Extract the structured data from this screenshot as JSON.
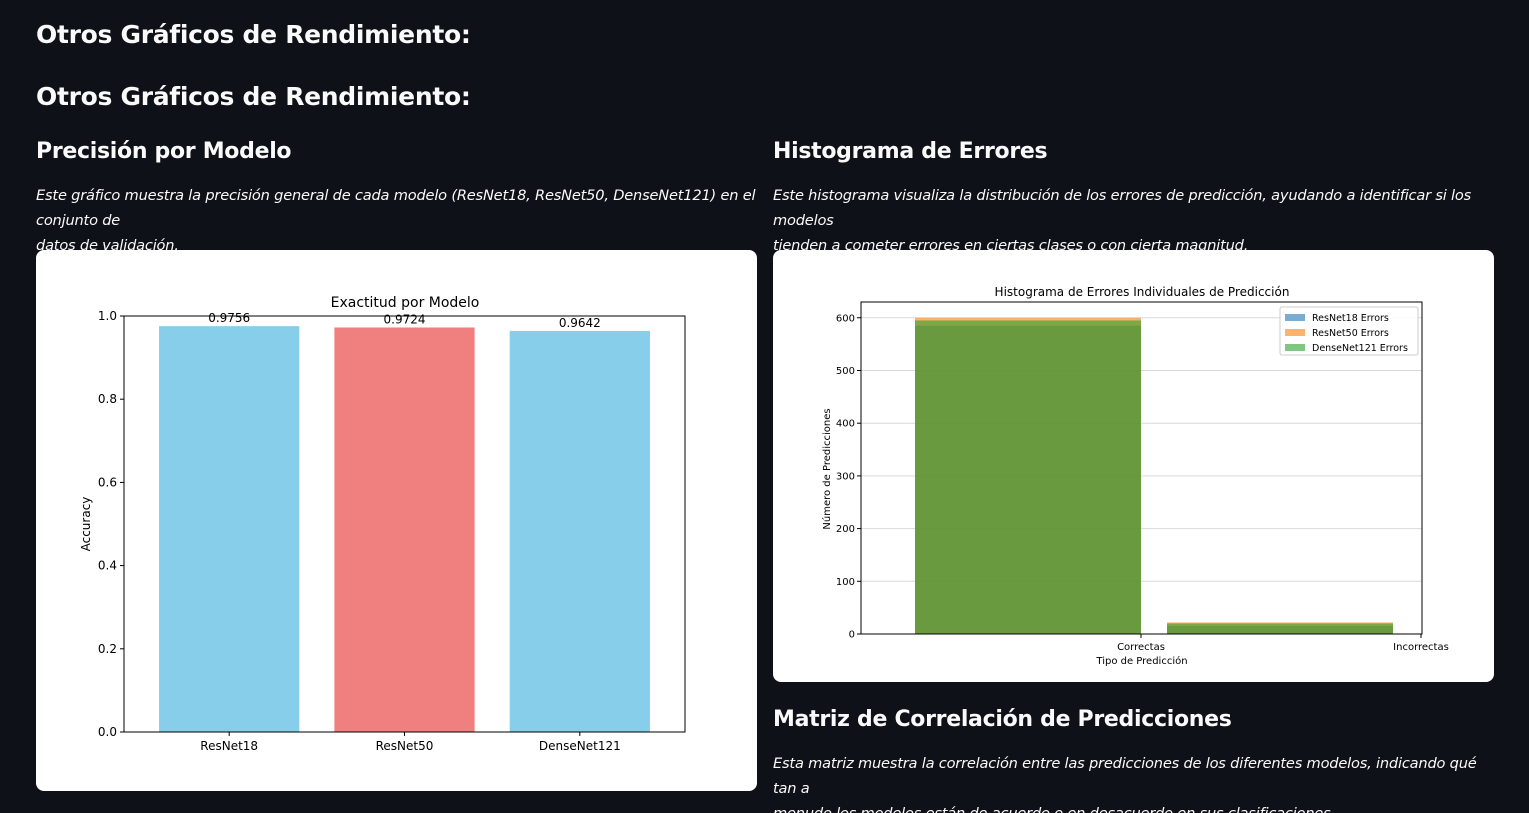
{
  "header": {
    "title_1": "Otros Gráficos de Rendimiento:",
    "title_2": "Otros Gráficos de Rendimiento:"
  },
  "left_section": {
    "heading": "Precisión por Modelo",
    "description_line1": "Este gráfico muestra la precisión general de cada modelo (ResNet18, ResNet50, DenseNet121) en el conjunto de",
    "description_line2": "datos de validación."
  },
  "right_section": {
    "heading": "Histograma de Errores",
    "description_line1": "Este histograma visualiza la distribución de los errores de predicción, ayudando a identificar si los modelos",
    "description_line2": "tienden a cometer errores en ciertas clases o con cierta magnitud."
  },
  "bottom_section": {
    "heading": "Matriz de Correlación de Predicciones",
    "description_line1": "Esta matriz muestra la correlación entre las predicciones de los diferentes modelos, indicando qué tan a",
    "description_line2": "menudo los modelos están de acuerdo o en desacuerdo en sus clasificaciones."
  },
  "chart_data": [
    {
      "type": "bar",
      "title": "Exactitud por Modelo",
      "xlabel": "",
      "ylabel": "Accuracy",
      "categories": [
        "ResNet18",
        "ResNet50",
        "DenseNet121"
      ],
      "values": [
        0.9756,
        0.9724,
        0.9642
      ],
      "value_labels": [
        "0.9756",
        "0.9724",
        "0.9642"
      ],
      "colors": [
        "#87ceeb",
        "#f08080",
        "#87ceeb"
      ],
      "ylim": [
        0,
        1.0
      ],
      "yticks": [
        "0.0",
        "0.2",
        "0.4",
        "0.6",
        "0.8",
        "1.0"
      ],
      "grid": false
    },
    {
      "type": "bar",
      "title": "Histograma de Errores Individuales de Predicción",
      "xlabel": "Tipo de Predicción",
      "ylabel": "Número de Predicciones",
      "categories": [
        "Correctas",
        "Incorrectas"
      ],
      "series": [
        {
          "name": "ResNet18 Errors",
          "color": "#1f77b4",
          "values": [
            585,
            15
          ]
        },
        {
          "name": "ResNet50 Errors",
          "color": "#ff7f0e",
          "values": [
            600,
            22
          ]
        },
        {
          "name": "DenseNet121 Errors",
          "color": "#2ca02c",
          "values": [
            595,
            20
          ]
        }
      ],
      "ylim": [
        0,
        630
      ],
      "yticks": [
        "0",
        "100",
        "200",
        "300",
        "400",
        "500",
        "600"
      ],
      "legend": "top-right",
      "grid": true
    }
  ]
}
